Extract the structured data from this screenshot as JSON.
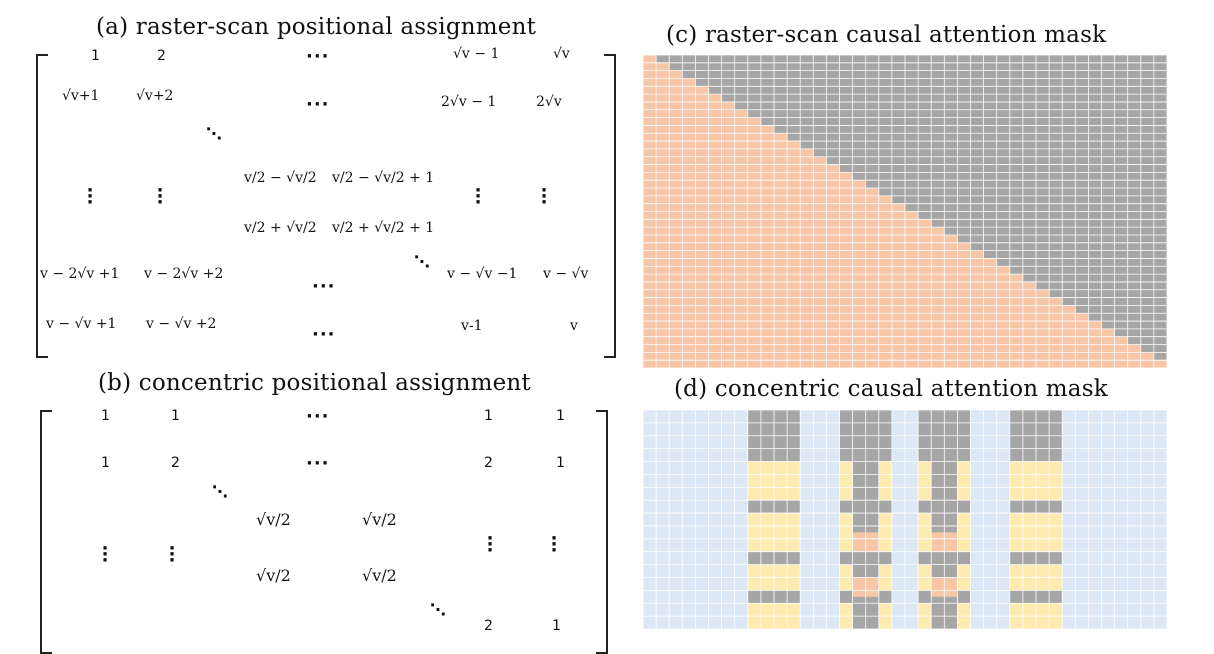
{
  "panels": {
    "a": {
      "title": "(a) raster-scan positional assignment",
      "row1": [
        "1",
        "2",
        "√v − 1",
        "√v"
      ],
      "row2": [
        "√v+1",
        "√v+2",
        "2√v − 1",
        "2√v"
      ],
      "mid": [
        "v/2 − √v/2",
        "v/2 − √v/2 + 1",
        "v/2 + √v/2",
        "v/2 + √v/2 + 1"
      ],
      "row5": [
        "v − 2√v +1",
        "v − 2√v +2",
        "v − √v −1",
        "v − √v"
      ],
      "row6": [
        "v − √v +1",
        "v − √v +2",
        "v-1",
        "v"
      ]
    },
    "b": {
      "title": "(b) concentric positional assignment",
      "row1": [
        "1",
        "1",
        "1",
        "1"
      ],
      "row2": [
        "1",
        "2",
        "2",
        "1"
      ],
      "mid": [
        "√v/2",
        "√v/2",
        "√v/2",
        "√v/2"
      ],
      "row5": [
        "2",
        "1"
      ]
    },
    "c": {
      "title": "(c) raster-scan causal attention mask"
    },
    "d": {
      "title": "(d) concentric causal attention mask"
    }
  },
  "colors": {
    "grid_line": "#ffffff",
    "masked_gray": "#a6a6a6",
    "attend_orange": "#f6c6a6",
    "blue": "#dce8f5",
    "yellow": "#ffeab0"
  }
}
